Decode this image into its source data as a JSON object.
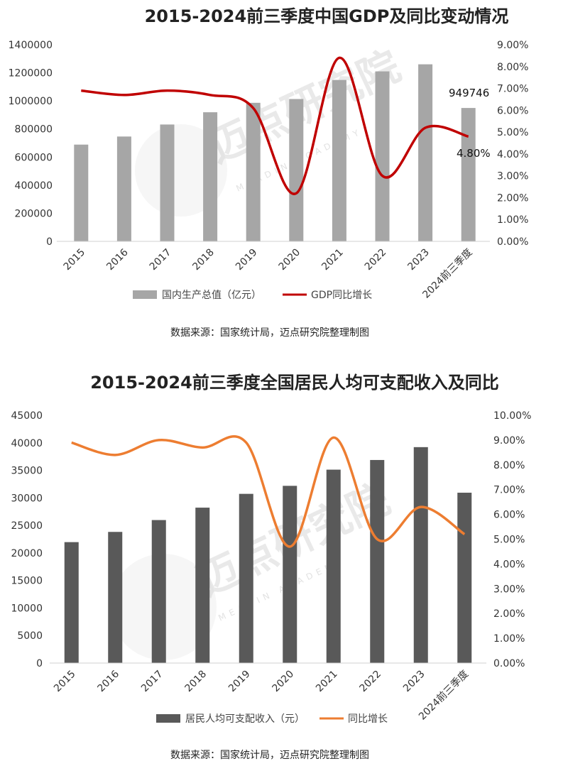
{
  "chart_data": [
    {
      "type": "bar",
      "title": "2015-2024前三季度中国GDP及同比变动情况",
      "categories": [
        "2015",
        "2016",
        "2017",
        "2018",
        "2019",
        "2020",
        "2021",
        "2022",
        "2023",
        "2024前三季度"
      ],
      "series": [
        {
          "name": "国内生产总值（亿元）",
          "type": "bar",
          "axis": "left",
          "color": "#a6a6a6",
          "values": [
            688858,
            746395,
            832036,
            919281,
            986515,
            1013567,
            1149237,
            1210207,
            1260582,
            949746
          ]
        },
        {
          "name": "GDP同比增长",
          "type": "line",
          "axis": "right",
          "color": "#c00000",
          "values": [
            0.069,
            0.067,
            0.069,
            0.067,
            0.061,
            0.022,
            0.084,
            0.03,
            0.052,
            0.048
          ]
        }
      ],
      "left_axis": {
        "min": 0,
        "max": 1400000,
        "step": 200000,
        "ticks": [
          "0",
          "200000",
          "400000",
          "600000",
          "800000",
          "1000000",
          "1200000",
          "1400000"
        ]
      },
      "right_axis": {
        "min": 0,
        "max": 0.09,
        "step": 0.01,
        "ticks": [
          "0.00%",
          "1.00%",
          "2.00%",
          "3.00%",
          "4.00%",
          "5.00%",
          "6.00%",
          "7.00%",
          "8.00%",
          "9.00%"
        ]
      },
      "data_labels": {
        "bar_last": "949746",
        "line_last": "4.80%"
      },
      "legend_position": "bottom",
      "grid": false,
      "source": "数据来源：国家统计局，迈点研究院整理制图"
    },
    {
      "type": "bar",
      "title": "2015-2024前三季度全国居民人均可支配收入及同比",
      "categories": [
        "2015",
        "2016",
        "2017",
        "2018",
        "2019",
        "2020",
        "2021",
        "2022",
        "2023",
        "2024前三季度"
      ],
      "series": [
        {
          "name": "居民人均可支配收入（元）",
          "type": "bar",
          "axis": "left",
          "color": "#595959",
          "values": [
            21966,
            23821,
            25974,
            28228,
            30733,
            32189,
            35128,
            36883,
            39218,
            30941
          ]
        },
        {
          "name": "同比增长",
          "type": "line",
          "axis": "right",
          "color": "#ed7d31",
          "values": [
            0.089,
            0.084,
            0.09,
            0.087,
            0.089,
            0.047,
            0.091,
            0.05,
            0.063,
            0.052
          ]
        }
      ],
      "left_axis": {
        "min": 0,
        "max": 45000,
        "step": 5000,
        "ticks": [
          "0",
          "5000",
          "10000",
          "15000",
          "20000",
          "25000",
          "30000",
          "35000",
          "40000",
          "45000"
        ]
      },
      "right_axis": {
        "min": 0,
        "max": 0.1,
        "step": 0.01,
        "ticks": [
          "0.00%",
          "1.00%",
          "2.00%",
          "3.00%",
          "4.00%",
          "5.00%",
          "6.00%",
          "7.00%",
          "8.00%",
          "9.00%",
          "10.00%"
        ]
      },
      "legend_position": "bottom",
      "grid": false,
      "source": "数据来源：国家统计局，迈点研究院整理制图"
    }
  ],
  "watermark": {
    "text": "迈点研究院",
    "sub": "MEADIN ACADEMY"
  }
}
